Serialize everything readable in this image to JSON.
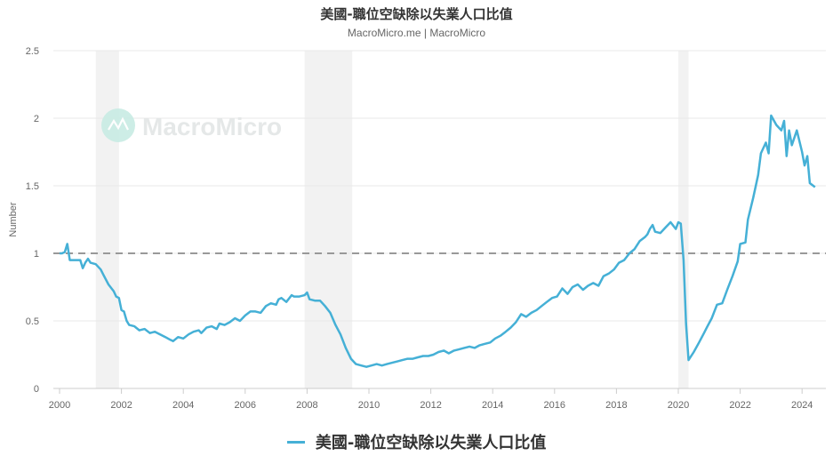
{
  "header": {
    "title": "美國-職位空缺除以失業人口比值",
    "subtitle": "MacroMicro.me | MacroMicro"
  },
  "watermark": {
    "text": "MacroMicro",
    "color": "#c8ece4"
  },
  "legend": {
    "items": [
      {
        "label": "美國-職位空缺除以失業人口比值",
        "color": "#45b0d6"
      }
    ]
  },
  "chart_data": {
    "type": "line",
    "title": "美國-職位空缺除以失業人口比值",
    "subtitle": "MacroMicro.me | MacroMicro",
    "xlabel": "",
    "ylabel": "Number",
    "xlim": [
      2000,
      2024.75
    ],
    "ylim": [
      0,
      2.5
    ],
    "x_ticks": [
      "2000",
      "2002",
      "2004",
      "2006",
      "2008",
      "2010",
      "2012",
      "2014",
      "2016",
      "2018",
      "2020",
      "2022",
      "2024"
    ],
    "y_ticks": [
      "0",
      "0.5",
      "1",
      "1.5",
      "2",
      "2.5"
    ],
    "grid": true,
    "legend_position": "bottom",
    "reference_line": {
      "y": 1,
      "style": "dashed",
      "color": "#999999"
    },
    "recession_bands": [
      {
        "start": 2001.17,
        "end": 2001.92
      },
      {
        "start": 2007.92,
        "end": 2009.46
      },
      {
        "start": 2020.0,
        "end": 2020.33
      }
    ],
    "series": [
      {
        "name": "美國-職位空缺除以失業人口比值",
        "color": "#45b0d6",
        "points": [
          [
            2000.0,
            1.0
          ],
          [
            2000.08,
            1.0
          ],
          [
            2000.17,
            1.01
          ],
          [
            2000.25,
            1.07
          ],
          [
            2000.33,
            0.95
          ],
          [
            2000.5,
            0.95
          ],
          [
            2000.67,
            0.95
          ],
          [
            2000.75,
            0.89
          ],
          [
            2000.83,
            0.93
          ],
          [
            2000.92,
            0.96
          ],
          [
            2001.0,
            0.93
          ],
          [
            2001.17,
            0.92
          ],
          [
            2001.33,
            0.88
          ],
          [
            2001.42,
            0.84
          ],
          [
            2001.58,
            0.77
          ],
          [
            2001.75,
            0.72
          ],
          [
            2001.83,
            0.68
          ],
          [
            2001.92,
            0.67
          ],
          [
            2002.0,
            0.58
          ],
          [
            2002.08,
            0.57
          ],
          [
            2002.17,
            0.5
          ],
          [
            2002.25,
            0.47
          ],
          [
            2002.42,
            0.46
          ],
          [
            2002.58,
            0.43
          ],
          [
            2002.75,
            0.44
          ],
          [
            2002.92,
            0.41
          ],
          [
            2003.08,
            0.42
          ],
          [
            2003.25,
            0.4
          ],
          [
            2003.42,
            0.38
          ],
          [
            2003.58,
            0.36
          ],
          [
            2003.67,
            0.35
          ],
          [
            2003.83,
            0.38
          ],
          [
            2004.0,
            0.37
          ],
          [
            2004.17,
            0.4
          ],
          [
            2004.33,
            0.42
          ],
          [
            2004.5,
            0.43
          ],
          [
            2004.58,
            0.41
          ],
          [
            2004.75,
            0.45
          ],
          [
            2004.92,
            0.46
          ],
          [
            2005.08,
            0.44
          ],
          [
            2005.17,
            0.48
          ],
          [
            2005.33,
            0.47
          ],
          [
            2005.5,
            0.49
          ],
          [
            2005.67,
            0.52
          ],
          [
            2005.83,
            0.5
          ],
          [
            2006.0,
            0.54
          ],
          [
            2006.17,
            0.57
          ],
          [
            2006.33,
            0.57
          ],
          [
            2006.5,
            0.56
          ],
          [
            2006.67,
            0.61
          ],
          [
            2006.83,
            0.63
          ],
          [
            2007.0,
            0.62
          ],
          [
            2007.08,
            0.66
          ],
          [
            2007.17,
            0.67
          ],
          [
            2007.33,
            0.64
          ],
          [
            2007.5,
            0.69
          ],
          [
            2007.58,
            0.68
          ],
          [
            2007.75,
            0.68
          ],
          [
            2007.92,
            0.69
          ],
          [
            2008.0,
            0.71
          ],
          [
            2008.08,
            0.66
          ],
          [
            2008.25,
            0.65
          ],
          [
            2008.42,
            0.65
          ],
          [
            2008.58,
            0.61
          ],
          [
            2008.75,
            0.56
          ],
          [
            2008.92,
            0.47
          ],
          [
            2009.08,
            0.4
          ],
          [
            2009.25,
            0.3
          ],
          [
            2009.42,
            0.22
          ],
          [
            2009.58,
            0.18
          ],
          [
            2009.75,
            0.17
          ],
          [
            2009.92,
            0.16
          ],
          [
            2010.08,
            0.17
          ],
          [
            2010.25,
            0.18
          ],
          [
            2010.42,
            0.17
          ],
          [
            2010.58,
            0.18
          ],
          [
            2010.75,
            0.19
          ],
          [
            2010.92,
            0.2
          ],
          [
            2011.08,
            0.21
          ],
          [
            2011.25,
            0.22
          ],
          [
            2011.42,
            0.22
          ],
          [
            2011.58,
            0.23
          ],
          [
            2011.75,
            0.24
          ],
          [
            2011.92,
            0.24
          ],
          [
            2012.08,
            0.25
          ],
          [
            2012.25,
            0.27
          ],
          [
            2012.42,
            0.28
          ],
          [
            2012.58,
            0.26
          ],
          [
            2012.75,
            0.28
          ],
          [
            2012.92,
            0.29
          ],
          [
            2013.08,
            0.3
          ],
          [
            2013.25,
            0.31
          ],
          [
            2013.42,
            0.3
          ],
          [
            2013.58,
            0.32
          ],
          [
            2013.75,
            0.33
          ],
          [
            2013.92,
            0.34
          ],
          [
            2014.08,
            0.37
          ],
          [
            2014.25,
            0.39
          ],
          [
            2014.42,
            0.42
          ],
          [
            2014.58,
            0.45
          ],
          [
            2014.75,
            0.49
          ],
          [
            2014.92,
            0.55
          ],
          [
            2015.08,
            0.53
          ],
          [
            2015.25,
            0.56
          ],
          [
            2015.42,
            0.58
          ],
          [
            2015.58,
            0.61
          ],
          [
            2015.75,
            0.64
          ],
          [
            2015.92,
            0.67
          ],
          [
            2016.08,
            0.68
          ],
          [
            2016.25,
            0.74
          ],
          [
            2016.42,
            0.7
          ],
          [
            2016.58,
            0.75
          ],
          [
            2016.75,
            0.77
          ],
          [
            2016.92,
            0.73
          ],
          [
            2017.08,
            0.76
          ],
          [
            2017.25,
            0.78
          ],
          [
            2017.42,
            0.76
          ],
          [
            2017.58,
            0.83
          ],
          [
            2017.75,
            0.85
          ],
          [
            2017.92,
            0.88
          ],
          [
            2018.08,
            0.93
          ],
          [
            2018.25,
            0.95
          ],
          [
            2018.42,
            1.0
          ],
          [
            2018.58,
            1.03
          ],
          [
            2018.75,
            1.09
          ],
          [
            2018.92,
            1.12
          ],
          [
            2019.0,
            1.14
          ],
          [
            2019.08,
            1.18
          ],
          [
            2019.17,
            1.21
          ],
          [
            2019.25,
            1.16
          ],
          [
            2019.42,
            1.15
          ],
          [
            2019.58,
            1.19
          ],
          [
            2019.75,
            1.23
          ],
          [
            2019.92,
            1.18
          ],
          [
            2020.0,
            1.23
          ],
          [
            2020.08,
            1.22
          ],
          [
            2020.17,
            0.95
          ],
          [
            2020.25,
            0.48
          ],
          [
            2020.33,
            0.21
          ],
          [
            2020.5,
            0.27
          ],
          [
            2020.67,
            0.34
          ],
          [
            2020.83,
            0.41
          ],
          [
            2020.92,
            0.45
          ],
          [
            2021.08,
            0.52
          ],
          [
            2021.25,
            0.62
          ],
          [
            2021.42,
            0.63
          ],
          [
            2021.58,
            0.73
          ],
          [
            2021.75,
            0.83
          ],
          [
            2021.92,
            0.94
          ],
          [
            2022.0,
            1.07
          ],
          [
            2022.17,
            1.08
          ],
          [
            2022.25,
            1.25
          ],
          [
            2022.42,
            1.41
          ],
          [
            2022.58,
            1.58
          ],
          [
            2022.67,
            1.74
          ],
          [
            2022.83,
            1.82
          ],
          [
            2022.92,
            1.74
          ],
          [
            2023.0,
            2.02
          ],
          [
            2023.17,
            1.95
          ],
          [
            2023.33,
            1.91
          ],
          [
            2023.42,
            1.98
          ],
          [
            2023.5,
            1.72
          ],
          [
            2023.58,
            1.91
          ],
          [
            2023.67,
            1.8
          ],
          [
            2023.83,
            1.91
          ],
          [
            2024.0,
            1.75
          ],
          [
            2024.08,
            1.65
          ],
          [
            2024.17,
            1.72
          ],
          [
            2024.25,
            1.52
          ],
          [
            2024.42,
            1.49
          ]
        ]
      }
    ]
  }
}
